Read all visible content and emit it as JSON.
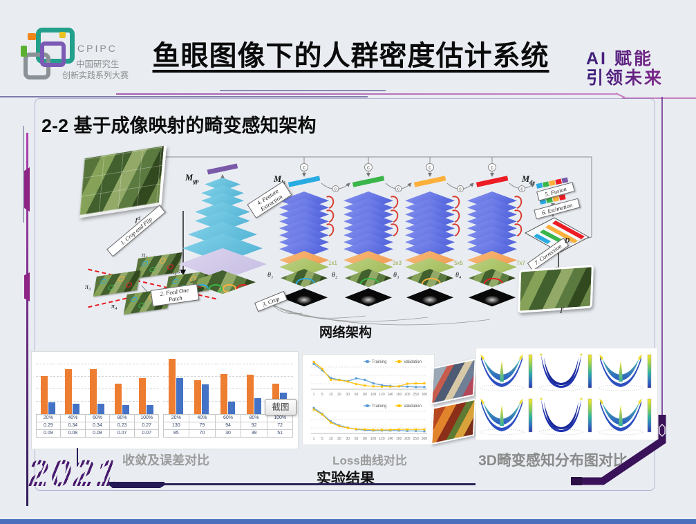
{
  "colors": {
    "background": "#e9edf2",
    "accent_purple": "#5b2291",
    "bar_orange": "#ed7d31",
    "bar_blue": "#4472c4",
    "line_blue": "#5b9bd5",
    "line_yellow": "#ffc000"
  },
  "header": {
    "logo": {
      "acronym": "CPIPC",
      "org_line1": "中国研究生",
      "org_line2": "创新实践系列大赛"
    },
    "title": "鱼眼图像下的人群密度估计系统",
    "slogan": {
      "line1": "AI 赋能",
      "line2": "引领未来"
    }
  },
  "slide": {
    "section_title": "2-2 基于成像映射的畸变感知架构",
    "year_badge": "2021"
  },
  "diagram": {
    "caption": "网络架构",
    "input_label": {
      "base": "I",
      "sup": "d"
    },
    "output_label": {
      "base": "I",
      "sup": "r"
    },
    "plane_label": "D",
    "fed_patch_label": "π₁",
    "patch_labels": [
      "π₂",
      "π₁",
      "π₃",
      "π₄"
    ],
    "concat_symbol": "c",
    "steps": {
      "step1": "1. Crop and Flip",
      "step2": "2. Feed One Patch",
      "step3": "3. Crop",
      "step4": "4. Feature Extraction",
      "step5": "5. Fusion",
      "step6": "6. Estimation",
      "step7": "7. Correction"
    },
    "modules": {
      "gp": {
        "base": "M",
        "sub": "gp"
      },
      "ls": {
        "base": "M",
        "sub": "ls"
      },
      "de": {
        "base": "M",
        "sub": "de"
      }
    },
    "towers": [
      {
        "theta": "θ₁",
        "kernel": "1x1",
        "bar_color": "#29abe2"
      },
      {
        "theta": "θ₂",
        "kernel": "3x3",
        "bar_color": "#3ab54a"
      },
      {
        "theta": "θ₃",
        "kernel": "5x5",
        "bar_color": "#fbb03b"
      },
      {
        "theta": "θ₄",
        "kernel": "7x7",
        "bar_color": "#ed1c24"
      }
    ],
    "fusion_bar_extra_color": "#7a59a8"
  },
  "results": {
    "section_caption": "实验结果",
    "bar_panel": {
      "caption": "收敛及误差对比"
    },
    "loss_panel": {
      "caption": "Loss曲线对比"
    },
    "surface_panel": {
      "caption": "3D畸变感知分布图对比"
    }
  },
  "tooltip_label": "截图",
  "chart_data": [
    {
      "type": "bar",
      "title": "收敛及误差对比（左：误差率）",
      "categories": [
        "20%",
        "40%",
        "60%",
        "80%",
        "100%"
      ],
      "series": [
        {
          "name": "orange",
          "color": "#ed7d31",
          "values": [
            0.29,
            0.34,
            0.34,
            0.23,
            0.27
          ]
        },
        {
          "name": "blue",
          "color": "#4472c4",
          "values": [
            0.09,
            0.08,
            0.08,
            0.07,
            0.07
          ]
        }
      ],
      "ylim": [
        0,
        0.45
      ],
      "grid": true,
      "legend_position": "none"
    },
    {
      "type": "bar",
      "title": "收敛及误差对比（右：误差值）",
      "categories": [
        "20%",
        "40%",
        "60%",
        "80%",
        "100%"
      ],
      "series": [
        {
          "name": "orange",
          "color": "#ed7d31",
          "values": [
            130,
            79,
            94,
            92,
            72
          ]
        },
        {
          "name": "blue",
          "color": "#4472c4",
          "values": [
            85,
            70,
            30,
            38,
            51
          ]
        }
      ],
      "ylim": [
        0,
        140
      ],
      "grid": true,
      "legend_position": "none"
    },
    {
      "type": "line",
      "title": "Loss曲线对比（上）",
      "x": [
        1,
        5,
        10,
        20,
        30,
        50,
        80,
        100,
        120,
        140,
        160,
        200,
        250,
        300
      ],
      "series": [
        {
          "name": "Training",
          "color": "#5b9bd5",
          "values": [
            10,
            8.2,
            6.1,
            5.6,
            5.2,
            6.0,
            5.6,
            4.6,
            4.1,
            3.9,
            3.8,
            3.7,
            3.6,
            3.6
          ]
        },
        {
          "name": "Validation",
          "color": "#ffc000",
          "values": [
            10.5,
            8.6,
            5.6,
            5.5,
            5.1,
            4.4,
            4.0,
            3.8,
            3.7,
            3.7,
            3.8,
            4.5,
            4.6,
            4.6
          ]
        }
      ],
      "ylim": [
        3,
        11
      ],
      "grid": true,
      "legend_position": "top-right"
    },
    {
      "type": "line",
      "title": "Loss曲线对比（下）",
      "x": [
        1,
        5,
        10,
        20,
        30,
        50,
        80,
        100,
        120,
        140,
        160,
        200,
        250,
        300
      ],
      "series": [
        {
          "name": "Training",
          "color": "#5b9bd5",
          "values": [
            10,
            8.4,
            6.3,
            5.2,
            4.6,
            4.1,
            3.9,
            3.8,
            3.8,
            3.8,
            3.8,
            3.7,
            3.7,
            3.6
          ]
        },
        {
          "name": "Validation",
          "color": "#ffc000",
          "values": [
            9.6,
            8.2,
            6.0,
            5.0,
            4.5,
            4.2,
            4.1,
            4.0,
            4.0,
            4.0,
            4.1,
            4.1,
            4.1,
            4.1
          ]
        }
      ],
      "ylim": [
        3,
        11
      ],
      "grid": true,
      "legend_position": "top-right"
    }
  ]
}
